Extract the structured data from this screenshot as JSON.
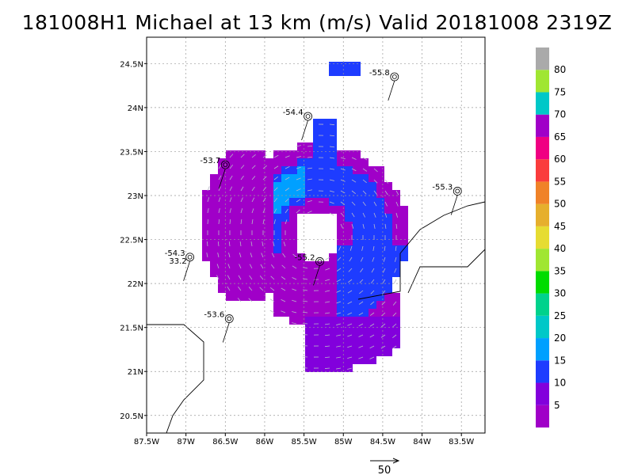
{
  "title": "181008H1 Michael at 13 km (m/s) Valid 20181008 2319Z",
  "map": {
    "lon_labels": [
      "87.5W",
      "87W",
      "86.5W",
      "86W",
      "85.5W",
      "85W",
      "84.5W",
      "84W",
      "83.5W"
    ],
    "lat_labels": [
      "24.5N",
      "24N",
      "23.5N",
      "23N",
      "22.5N",
      "22N",
      "21.5N",
      "21N",
      "20.5N"
    ],
    "dropsondes": [
      {
        "label": "-55.8",
        "lon": -84.35,
        "lat": 24.35
      },
      {
        "label": "-54.4",
        "lon": -85.45,
        "lat": 23.9
      },
      {
        "label": "-53.7",
        "lon": -86.5,
        "lat": 23.35
      },
      {
        "label": "-55.3",
        "lon": -83.55,
        "lat": 23.05
      },
      {
        "label": "-54.3",
        "lon": -86.95,
        "lat": 22.3
      },
      {
        "label": "-53.6",
        "lon": -86.45,
        "lat": 21.6
      },
      {
        "label": "-55.2",
        "lon": -85.3,
        "lat": 22.25
      }
    ],
    "extra_label": "33.2"
  },
  "colorbar": {
    "labels": [
      "5",
      "10",
      "15",
      "20",
      "25",
      "30",
      "35",
      "40",
      "45",
      "50",
      "55",
      "60",
      "65",
      "70",
      "75",
      "80"
    ],
    "colors": [
      "#a000c8",
      "#8200dc",
      "#1e3cff",
      "#00a0ff",
      "#00c8c8",
      "#00d28c",
      "#00dc00",
      "#a0e632",
      "#e6dc32",
      "#e6af2d",
      "#f08228",
      "#fa3c3c",
      "#f00082",
      "#a000c8",
      "#00c8c8",
      "#a0e632",
      "#aaaaaa"
    ]
  },
  "reference_vector": {
    "label": "50"
  },
  "chart_data": {
    "type": "heatmap",
    "title": "181008H1 Michael at 13 km (m/s) Valid 20181008 2319Z",
    "xlim": [
      "87.5W",
      "83.2W"
    ],
    "ylim": [
      "20.3N",
      "24.8N"
    ],
    "colorbar_range": [
      0,
      85
    ],
    "colorbar_ticks": [
      5,
      10,
      15,
      20,
      25,
      30,
      35,
      40,
      45,
      50,
      55,
      60,
      65,
      70,
      75,
      80
    ],
    "dropsonde_values": [
      -55.8,
      -54.4,
      -53.7,
      -55.3,
      -54.3,
      -53.6,
      -55.2
    ],
    "reference_vector_m_s": 50
  }
}
